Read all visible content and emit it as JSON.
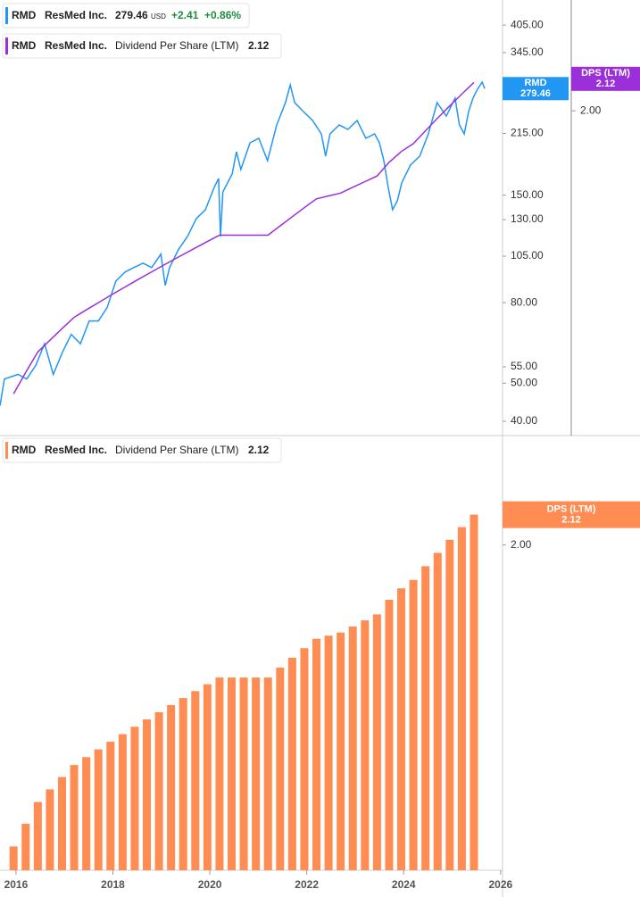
{
  "chart_data": [
    {
      "type": "line",
      "log_scale": true,
      "grid": false,
      "xlim": [
        2015.67,
        2026.04
      ],
      "ylim": [
        37,
        469
      ],
      "yticks": [
        {
          "value": 40,
          "label": "40.00"
        },
        {
          "value": 50,
          "label": "50.00"
        },
        {
          "value": 55,
          "label": "55.00"
        },
        {
          "value": 80,
          "label": "80.00"
        },
        {
          "value": 105,
          "label": "105.00"
        },
        {
          "value": 130,
          "label": "130.00"
        },
        {
          "value": 150,
          "label": "150.00"
        },
        {
          "value": 215,
          "label": "215.00"
        },
        {
          "value": 345,
          "label": "345.00"
        },
        {
          "value": 405,
          "label": "405.00"
        }
      ],
      "y2lim": [
        1.03,
        2.51
      ],
      "y2ticks": [
        {
          "value": 2,
          "label": "2.00"
        }
      ],
      "series": [
        {
          "ticker": "RMD",
          "name": "ResMed Inc.",
          "color": "#2196f3",
          "last_label": "279.46",
          "currency": "USD",
          "change": "+2.41",
          "change_pct": "+0.86%",
          "x": [
            2015.67,
            2015.76,
            2016.04,
            2016.22,
            2016.41,
            2016.59,
            2016.77,
            2016.96,
            2017.14,
            2017.33,
            2017.51,
            2017.7,
            2017.88,
            2018.06,
            2018.25,
            2018.43,
            2018.62,
            2018.8,
            2018.99,
            2019.08,
            2019.17,
            2019.35,
            2019.54,
            2019.72,
            2019.91,
            2020.09,
            2020.18,
            2020.22,
            2020.27,
            2020.46,
            2020.55,
            2020.64,
            2020.83,
            2021.01,
            2021.19,
            2021.38,
            2021.56,
            2021.66,
            2021.75,
            2021.93,
            2022.12,
            2022.3,
            2022.39,
            2022.48,
            2022.67,
            2022.85,
            2023.04,
            2023.22,
            2023.4,
            2023.5,
            2023.59,
            2023.68,
            2023.77,
            2023.87,
            2023.96,
            2024.14,
            2024.33,
            2024.51,
            2024.69,
            2024.88,
            2025.06,
            2025.15,
            2025.25,
            2025.34,
            2025.43,
            2025.52,
            2025.62,
            2025.67
          ],
          "values": [
            43.8,
            51.2,
            52.6,
            51.2,
            55.5,
            62.9,
            52.6,
            59.9,
            66.5,
            62.9,
            71.9,
            71.9,
            77.7,
            90.8,
            95.7,
            98.2,
            100.8,
            98.2,
            106.2,
            88.5,
            98.2,
            109,
            117.9,
            130.8,
            137.8,
            157,
            165.4,
            117.9,
            152.9,
            169.7,
            193.3,
            174.2,
            203.6,
            209.1,
            183.5,
            226,
            257.5,
            285.6,
            257.5,
            244.4,
            232,
            214.5,
            188.3,
            214.5,
            226,
            220.2,
            232,
            209.1,
            214.5,
            203.6,
            183.5,
            157,
            137.8,
            145.2,
            161.2,
            178.8,
            188.3,
            214.5,
            257.5,
            238.1,
            264.3,
            226,
            214.5,
            244.4,
            264.3,
            278.3,
            290.2,
            279.46
          ]
        },
        {
          "ticker": "RMD",
          "company": "ResMed Inc.",
          "name": "Dividend Per Share (LTM)",
          "tag_label": "DPS (LTM)",
          "color": "#9b2fd9",
          "axis": "y2",
          "last_label": "2.12",
          "x": [
            2015.95,
            2016.2,
            2016.45,
            2016.7,
            2016.95,
            2017.2,
            2017.45,
            2017.7,
            2017.95,
            2018.2,
            2018.45,
            2018.7,
            2018.95,
            2019.2,
            2019.45,
            2019.7,
            2019.95,
            2020.2,
            2020.45,
            2020.7,
            2020.95,
            2021.2,
            2021.45,
            2021.7,
            2021.95,
            2022.2,
            2022.45,
            2022.7,
            2022.95,
            2023.2,
            2023.45,
            2023.7,
            2023.95,
            2024.2,
            2024.45,
            2024.7,
            2024.95,
            2025.2,
            2025.45
          ],
          "values": [
            1.12,
            1.17,
            1.22,
            1.25,
            1.28,
            1.31,
            1.33,
            1.35,
            1.37,
            1.39,
            1.41,
            1.43,
            1.45,
            1.47,
            1.49,
            1.51,
            1.53,
            1.55,
            1.55,
            1.55,
            1.55,
            1.55,
            1.58,
            1.61,
            1.64,
            1.67,
            1.68,
            1.69,
            1.71,
            1.73,
            1.75,
            1.8,
            1.84,
            1.87,
            1.92,
            1.97,
            2.02,
            2.07,
            2.12
          ]
        }
      ]
    },
    {
      "type": "bar",
      "log_scale": true,
      "grid": false,
      "xlim": [
        2015.67,
        2026.04
      ],
      "xticks": [
        2016,
        2018,
        2020,
        2022,
        2024,
        2026
      ],
      "ylim": [
        1.07,
        2.46
      ],
      "yticks": [
        {
          "value": 2,
          "label": "2.00"
        }
      ],
      "series": [
        {
          "ticker": "RMD",
          "company": "ResMed Inc.",
          "name": "Dividend Per Share (LTM)",
          "tag_label": "DPS (LTM)",
          "color": "#ff8c52",
          "last_label": "2.12",
          "x": [
            2015.95,
            2016.2,
            2016.45,
            2016.7,
            2016.95,
            2017.2,
            2017.45,
            2017.7,
            2017.95,
            2018.2,
            2018.45,
            2018.7,
            2018.95,
            2019.2,
            2019.45,
            2019.7,
            2019.95,
            2020.2,
            2020.45,
            2020.7,
            2020.95,
            2021.2,
            2021.45,
            2021.7,
            2021.95,
            2022.2,
            2022.45,
            2022.7,
            2022.95,
            2023.2,
            2023.45,
            2023.7,
            2023.95,
            2024.2,
            2024.45,
            2024.7,
            2024.95,
            2025.2,
            2025.45
          ],
          "values": [
            1.12,
            1.17,
            1.22,
            1.25,
            1.28,
            1.31,
            1.33,
            1.35,
            1.37,
            1.39,
            1.41,
            1.43,
            1.45,
            1.47,
            1.49,
            1.51,
            1.53,
            1.55,
            1.55,
            1.55,
            1.55,
            1.55,
            1.58,
            1.61,
            1.64,
            1.67,
            1.68,
            1.69,
            1.71,
            1.73,
            1.75,
            1.8,
            1.84,
            1.87,
            1.92,
            1.97,
            2.02,
            2.07,
            2.12
          ]
        }
      ]
    }
  ]
}
